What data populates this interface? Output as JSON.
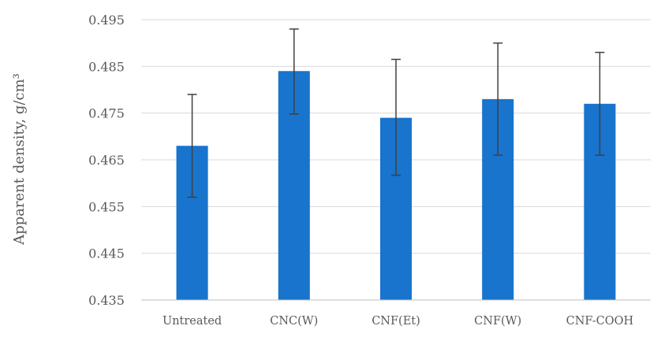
{
  "chart_data": {
    "type": "bar",
    "title": "",
    "xlabel": "",
    "ylabel": "Apparent density, g/cm³",
    "categories": [
      "Untreated",
      "CNC(W)",
      "CNF(Et)",
      "CNF(W)",
      "CNF-COOH"
    ],
    "values": [
      0.468,
      0.484,
      0.474,
      0.478,
      0.477
    ],
    "error_bars": [
      {
        "low": 0.457,
        "high": 0.479
      },
      {
        "low": 0.4748,
        "high": 0.493
      },
      {
        "low": 0.4617,
        "high": 0.4865
      },
      {
        "low": 0.466,
        "high": 0.49
      },
      {
        "low": 0.466,
        "high": 0.488
      }
    ],
    "ylim": [
      0.435,
      0.495
    ],
    "yticks": [
      "0.435",
      "0.445",
      "0.455",
      "0.465",
      "0.475",
      "0.485",
      "0.495"
    ],
    "grid": true,
    "colors": {
      "bar": "#1874CD",
      "error_bar": "#404040",
      "grid": "#D9D9D9",
      "axis": "#BFBFBF"
    }
  }
}
